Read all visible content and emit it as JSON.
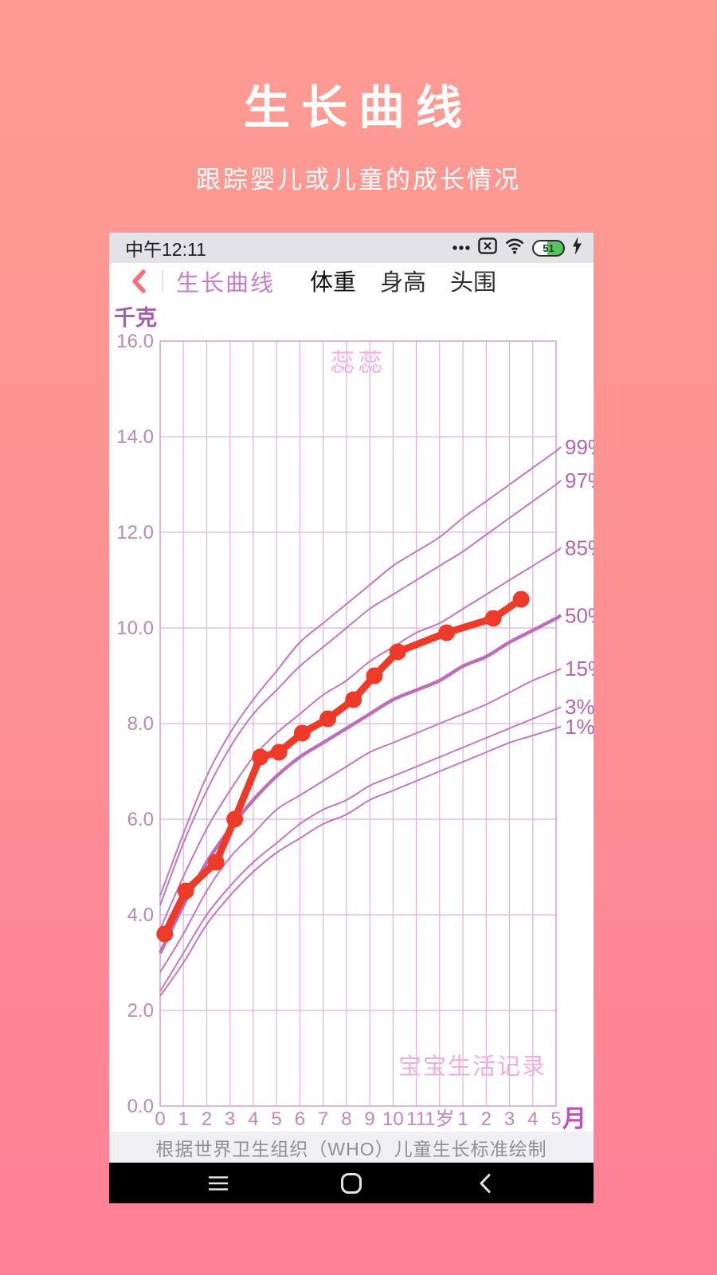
{
  "hero": {
    "title": "生长曲线",
    "subtitle": "跟踪婴儿或儿童的成长情况"
  },
  "statusbar": {
    "time": "中午12:11",
    "battery_percent": "51",
    "icons": [
      "more-dots-icon",
      "sim-missing-icon",
      "wifi-icon",
      "battery-icon",
      "charging-bolt-icon"
    ]
  },
  "navbar": {
    "back_icon": "chevron-left-icon",
    "title": "生长曲线",
    "tabs": [
      {
        "label": "体重",
        "active": true
      },
      {
        "label": "身高",
        "active": false
      },
      {
        "label": "头围",
        "active": false
      }
    ]
  },
  "chart_data": {
    "type": "line",
    "ylabel": "千克",
    "xlabel": "月",
    "watermark_name": "蕊蕊",
    "watermark_brand": "宝宝生活记录",
    "ylim": [
      0,
      16
    ],
    "xlim": [
      0,
      17
    ],
    "yticks": [
      16,
      14,
      12,
      10,
      8,
      6,
      4,
      2,
      0
    ],
    "xticklabels": [
      "0",
      "1",
      "2",
      "3",
      "4",
      "5",
      "6",
      "7",
      "8",
      "9",
      "10",
      "11",
      "1岁",
      "1",
      "2",
      "3",
      "4",
      "5"
    ],
    "percentile_series": [
      {
        "name": "99%",
        "values": [
          4.4,
          5.7,
          6.9,
          7.8,
          8.5,
          9.1,
          9.7,
          10.1,
          10.5,
          10.9,
          11.3,
          11.6,
          11.9,
          12.3,
          12.65,
          13.0,
          13.35,
          13.7
        ]
      },
      {
        "name": "97%",
        "values": [
          4.2,
          5.5,
          6.6,
          7.5,
          8.2,
          8.7,
          9.2,
          9.6,
          10.0,
          10.4,
          10.7,
          11.0,
          11.3,
          11.6,
          11.95,
          12.3,
          12.65,
          13.0
        ]
      },
      {
        "name": "85%",
        "values": [
          3.7,
          4.8,
          5.8,
          6.6,
          7.3,
          7.8,
          8.2,
          8.6,
          8.9,
          9.3,
          9.6,
          9.9,
          10.1,
          10.4,
          10.7,
          11.0,
          11.3,
          11.6
        ]
      },
      {
        "name": "50%",
        "values": [
          3.2,
          4.2,
          5.1,
          5.8,
          6.4,
          6.9,
          7.3,
          7.6,
          7.9,
          8.2,
          8.5,
          8.7,
          8.9,
          9.2,
          9.4,
          9.7,
          9.95,
          10.2
        ]
      },
      {
        "name": "15%",
        "values": [
          2.8,
          3.6,
          4.5,
          5.2,
          5.7,
          6.2,
          6.5,
          6.8,
          7.1,
          7.4,
          7.6,
          7.8,
          8.0,
          8.2,
          8.4,
          8.65,
          8.9,
          9.1
        ]
      },
      {
        "name": "3%",
        "values": [
          2.4,
          3.2,
          4.0,
          4.6,
          5.1,
          5.5,
          5.9,
          6.2,
          6.4,
          6.7,
          6.9,
          7.1,
          7.3,
          7.5,
          7.7,
          7.9,
          8.1,
          8.3
        ]
      },
      {
        "name": "1%",
        "values": [
          2.3,
          3.0,
          3.8,
          4.4,
          4.9,
          5.3,
          5.6,
          5.9,
          6.1,
          6.4,
          6.6,
          6.8,
          7.0,
          7.2,
          7.4,
          7.6,
          7.75,
          7.9
        ]
      }
    ],
    "baby_series": {
      "label": "蕊蕊",
      "unit": "kg",
      "points": [
        [
          0.2,
          3.6
        ],
        [
          1.1,
          4.5
        ],
        [
          2.4,
          5.1
        ],
        [
          3.2,
          6.0
        ],
        [
          4.3,
          7.3
        ],
        [
          5.1,
          7.4
        ],
        [
          6.1,
          7.8
        ],
        [
          7.2,
          8.1
        ],
        [
          8.3,
          8.5
        ],
        [
          9.2,
          9.0
        ],
        [
          10.2,
          9.5
        ],
        [
          12.3,
          9.9
        ],
        [
          14.3,
          10.2
        ],
        [
          15.5,
          10.6
        ]
      ]
    }
  },
  "footer": {
    "text": "根据世界卫生组织（WHO）儿童生长标准绘制"
  },
  "android_nav": {
    "icons": [
      "menu-icon",
      "home-icon",
      "back-icon"
    ]
  },
  "colors": {
    "bg_top": "#fd9c93",
    "bg_bottom": "#fd8096",
    "accent_pink": "#f5798e",
    "back_arrow": "#f5707f",
    "nav_purple": "#c97ec9",
    "grid": "#e2b0dc",
    "plot_border": "#d49fcf",
    "curve": "#c476be",
    "curve_median": "#bd6eba",
    "tick": "#bb86b8",
    "xtick": "#c285bc",
    "axis_unit": "#a85bac",
    "month_label": "#c050b6",
    "percent_label": "#b465ad",
    "data_red": "#ee3a28",
    "watermark": "#f3aee1",
    "watermark_brand": "#eeadda"
  }
}
